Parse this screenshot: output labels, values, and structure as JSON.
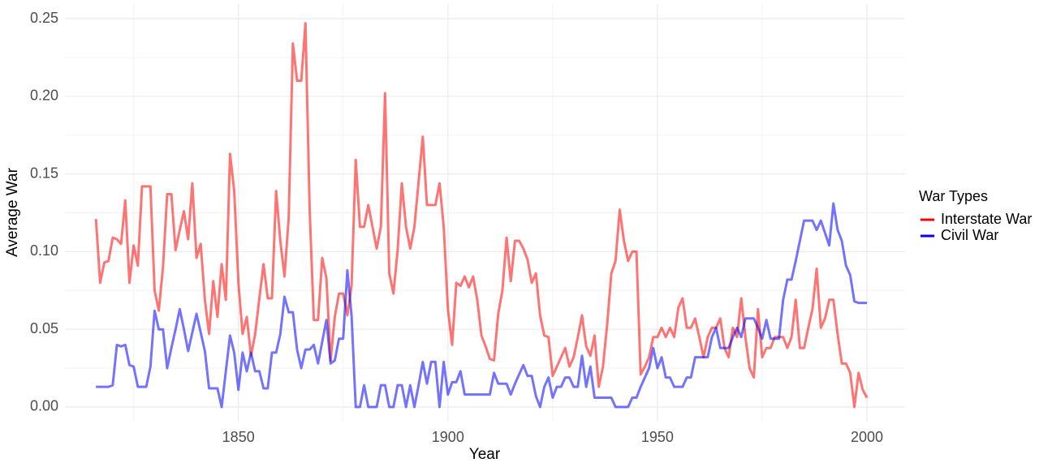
{
  "chart_data": {
    "type": "line",
    "xlabel": "Year",
    "ylabel": "Average War",
    "legend_title": "War Types",
    "legend_position": "right",
    "grid": true,
    "line_alpha": 0.55,
    "x": [
      1816,
      1817,
      1818,
      1819,
      1820,
      1821,
      1822,
      1823,
      1824,
      1825,
      1826,
      1827,
      1828,
      1829,
      1830,
      1831,
      1832,
      1833,
      1834,
      1835,
      1836,
      1837,
      1838,
      1839,
      1840,
      1841,
      1842,
      1843,
      1844,
      1845,
      1846,
      1847,
      1848,
      1849,
      1850,
      1851,
      1852,
      1853,
      1854,
      1855,
      1856,
      1857,
      1858,
      1859,
      1860,
      1861,
      1862,
      1863,
      1864,
      1865,
      1866,
      1867,
      1868,
      1869,
      1870,
      1871,
      1872,
      1873,
      1874,
      1875,
      1876,
      1877,
      1878,
      1879,
      1880,
      1881,
      1882,
      1883,
      1884,
      1885,
      1886,
      1887,
      1888,
      1889,
      1890,
      1891,
      1892,
      1893,
      1894,
      1895,
      1896,
      1897,
      1898,
      1899,
      1900,
      1901,
      1902,
      1903,
      1904,
      1905,
      1906,
      1907,
      1908,
      1909,
      1910,
      1911,
      1912,
      1913,
      1914,
      1915,
      1916,
      1917,
      1918,
      1919,
      1920,
      1921,
      1922,
      1923,
      1924,
      1925,
      1926,
      1927,
      1928,
      1929,
      1930,
      1931,
      1932,
      1933,
      1934,
      1935,
      1936,
      1937,
      1938,
      1939,
      1940,
      1941,
      1942,
      1943,
      1944,
      1945,
      1946,
      1947,
      1948,
      1949,
      1950,
      1951,
      1952,
      1953,
      1954,
      1955,
      1956,
      1957,
      1958,
      1959,
      1960,
      1961,
      1962,
      1963,
      1964,
      1965,
      1966,
      1967,
      1968,
      1969,
      1970,
      1971,
      1972,
      1973,
      1974,
      1975,
      1976,
      1977,
      1978,
      1979,
      1980,
      1981,
      1982,
      1983,
      1984,
      1985,
      1986,
      1987,
      1988,
      1989,
      1990,
      1991,
      1992,
      1993,
      1994,
      1995,
      1996,
      1997,
      1998,
      1999,
      2000
    ],
    "series": [
      {
        "name": "Interstate War",
        "color": "#ff0000",
        "values": [
          0.121,
          0.08,
          0.093,
          0.094,
          0.109,
          0.108,
          0.105,
          0.133,
          0.08,
          0.104,
          0.091,
          0.142,
          0.142,
          0.142,
          0.075,
          0.062,
          0.09,
          0.137,
          0.137,
          0.101,
          0.114,
          0.126,
          0.108,
          0.144,
          0.096,
          0.105,
          0.069,
          0.047,
          0.081,
          0.058,
          0.092,
          0.069,
          0.163,
          0.139,
          0.08,
          0.047,
          0.058,
          0.033,
          0.047,
          0.07,
          0.092,
          0.07,
          0.07,
          0.139,
          0.107,
          0.084,
          0.122,
          0.234,
          0.21,
          0.21,
          0.247,
          0.127,
          0.056,
          0.056,
          0.096,
          0.083,
          0.03,
          0.058,
          0.073,
          0.073,
          0.059,
          0.078,
          0.159,
          0.116,
          0.116,
          0.13,
          0.116,
          0.102,
          0.116,
          0.202,
          0.086,
          0.073,
          0.101,
          0.144,
          0.116,
          0.102,
          0.116,
          0.145,
          0.174,
          0.13,
          0.13,
          0.13,
          0.144,
          0.116,
          0.063,
          0.04,
          0.08,
          0.078,
          0.084,
          0.077,
          0.084,
          0.069,
          0.046,
          0.039,
          0.031,
          0.03,
          0.06,
          0.075,
          0.109,
          0.081,
          0.107,
          0.107,
          0.102,
          0.095,
          0.08,
          0.086,
          0.059,
          0.046,
          0.045,
          0.02,
          0.026,
          0.032,
          0.038,
          0.026,
          0.032,
          0.045,
          0.059,
          0.039,
          0.033,
          0.046,
          0.013,
          0.026,
          0.053,
          0.086,
          0.094,
          0.127,
          0.107,
          0.094,
          0.1,
          0.1,
          0.021,
          0.026,
          0.032,
          0.045,
          0.045,
          0.051,
          0.045,
          0.051,
          0.045,
          0.064,
          0.07,
          0.051,
          0.051,
          0.057,
          0.045,
          0.032,
          0.045,
          0.051,
          0.051,
          0.057,
          0.038,
          0.032,
          0.051,
          0.045,
          0.07,
          0.045,
          0.025,
          0.019,
          0.063,
          0.032,
          0.038,
          0.038,
          0.045,
          0.045,
          0.045,
          0.038,
          0.045,
          0.069,
          0.038,
          0.038,
          0.051,
          0.063,
          0.089,
          0.051,
          0.057,
          0.069,
          0.069,
          0.047,
          0.028,
          0.028,
          0.022,
          0.0,
          0.022,
          0.011,
          0.006
        ]
      },
      {
        "name": "Civil War",
        "color": "#0000ff",
        "values": [
          0.013,
          0.013,
          0.013,
          0.013,
          0.014,
          0.04,
          0.039,
          0.04,
          0.027,
          0.026,
          0.013,
          0.013,
          0.013,
          0.026,
          0.062,
          0.05,
          0.05,
          0.025,
          0.038,
          0.05,
          0.063,
          0.05,
          0.036,
          0.048,
          0.06,
          0.048,
          0.036,
          0.012,
          0.012,
          0.012,
          0.0,
          0.023,
          0.046,
          0.035,
          0.011,
          0.035,
          0.023,
          0.035,
          0.023,
          0.023,
          0.012,
          0.012,
          0.035,
          0.035,
          0.047,
          0.071,
          0.061,
          0.061,
          0.037,
          0.025,
          0.037,
          0.037,
          0.04,
          0.028,
          0.042,
          0.056,
          0.028,
          0.03,
          0.044,
          0.044,
          0.088,
          0.059,
          0.0,
          0.0,
          0.014,
          0.0,
          0.0,
          0.0,
          0.014,
          0.014,
          0.0,
          0.0,
          0.014,
          0.014,
          0.0,
          0.014,
          0.0,
          0.014,
          0.029,
          0.015,
          0.029,
          0.029,
          0.0,
          0.029,
          0.008,
          0.016,
          0.016,
          0.023,
          0.008,
          0.008,
          0.008,
          0.008,
          0.008,
          0.008,
          0.008,
          0.022,
          0.015,
          0.015,
          0.015,
          0.008,
          0.015,
          0.021,
          0.027,
          0.02,
          0.02,
          0.007,
          0.0,
          0.013,
          0.019,
          0.006,
          0.013,
          0.013,
          0.019,
          0.019,
          0.013,
          0.013,
          0.033,
          0.013,
          0.026,
          0.006,
          0.006,
          0.006,
          0.006,
          0.006,
          0.0,
          0.0,
          0.0,
          0.0,
          0.006,
          0.006,
          0.013,
          0.019,
          0.025,
          0.038,
          0.025,
          0.032,
          0.019,
          0.019,
          0.013,
          0.013,
          0.013,
          0.019,
          0.019,
          0.032,
          0.032,
          0.032,
          0.032,
          0.045,
          0.051,
          0.038,
          0.038,
          0.038,
          0.045,
          0.051,
          0.045,
          0.057,
          0.057,
          0.057,
          0.051,
          0.044,
          0.056,
          0.044,
          0.044,
          0.044,
          0.069,
          0.082,
          0.082,
          0.094,
          0.107,
          0.12,
          0.12,
          0.12,
          0.114,
          0.12,
          0.112,
          0.104,
          0.131,
          0.114,
          0.107,
          0.091,
          0.085,
          0.068,
          0.067,
          0.067,
          0.067
        ]
      }
    ],
    "xlim": [
      1808.6,
      2009.1
    ],
    "xticks": [
      1850,
      1900,
      1950,
      2000
    ],
    "ylim": [
      -0.0094,
      0.2594
    ],
    "yticks": [
      {
        "value": 0,
        "label": "0.00"
      },
      {
        "value": 0.05,
        "label": "0.05"
      },
      {
        "value": 0.1,
        "label": "0.10"
      },
      {
        "value": 0.15,
        "label": "0.15"
      },
      {
        "value": 0.2,
        "label": "0.20"
      },
      {
        "value": 0.25,
        "label": "0.25"
      }
    ]
  }
}
